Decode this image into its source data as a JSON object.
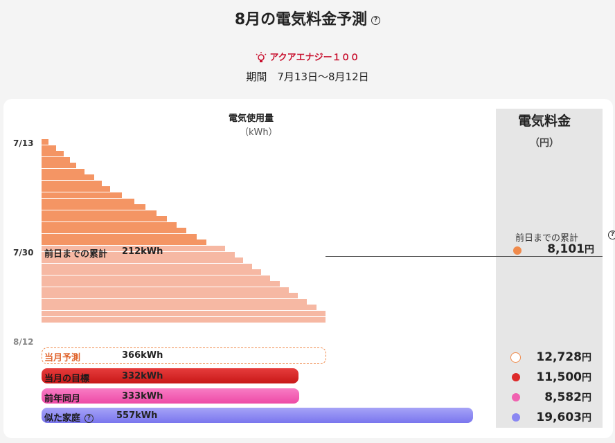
{
  "header": {
    "title": "8月の電気料金予測",
    "plan_name": "アクアエナジー１００",
    "period": "期間　7月13日〜8月12日"
  },
  "usage_chart": {
    "title": "電気使用量",
    "unit": "（kWh）",
    "date_labels": [
      "7/13",
      "7/30",
      "8/12"
    ],
    "cumulative_label": "前日までの累計",
    "cumulative_value": "212kWh"
  },
  "fee_panel": {
    "title": "電気料金",
    "unit": "（円）",
    "cumulative_label": "前日までの累計",
    "cumulative_amount": "8,101",
    "yen": "円"
  },
  "comparisons": [
    {
      "label": "当月予測",
      "value": "366kWh",
      "amount": "12,728",
      "color": "#f08a4b"
    },
    {
      "label": "当月の目標",
      "value": "332kWh",
      "amount": "11,500",
      "color": "#dd2a2a"
    },
    {
      "label": "前年同月",
      "value": "333kWh",
      "amount": "8,582",
      "color": "#f062b0"
    },
    {
      "label": "似た家庭",
      "value": "557kWh",
      "amount": "19,603",
      "color": "#8a87f2"
    }
  ],
  "colors": {
    "actual_bar": "#f49564",
    "forecast_bar": "#f6b8a3",
    "target": "#dd2a2a",
    "last_year": "#f062b0",
    "similar": "#8a87f2"
  }
}
